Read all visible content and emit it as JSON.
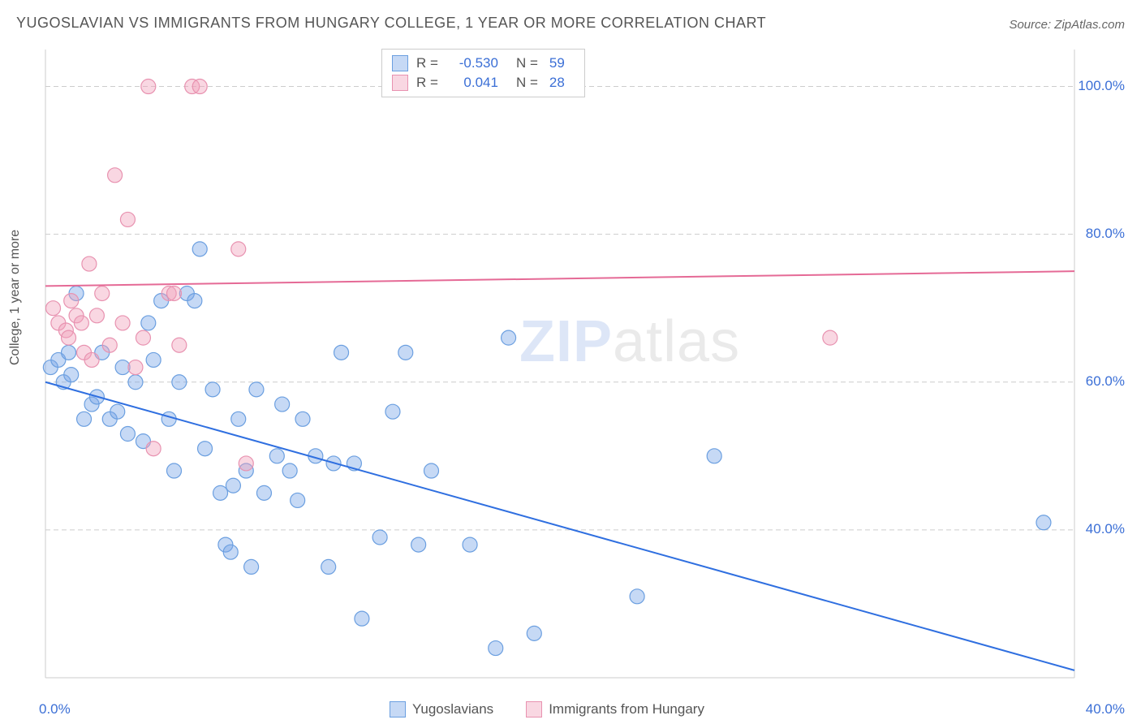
{
  "title": "YUGOSLAVIAN VS IMMIGRANTS FROM HUNGARY COLLEGE, 1 YEAR OR MORE CORRELATION CHART",
  "source": "Source: ZipAtlas.com",
  "y_axis_label": "College, 1 year or more",
  "watermark": "ZIPatlas",
  "chart": {
    "type": "scatter",
    "background_color": "#ffffff",
    "grid_color": "#cccccc",
    "grid_dash": "6,4",
    "xlim": [
      0,
      40
    ],
    "ylim": [
      20,
      105
    ],
    "y_ticks": [
      {
        "value": 40,
        "label": "40.0%"
      },
      {
        "value": 60,
        "label": "60.0%"
      },
      {
        "value": 80,
        "label": "80.0%"
      },
      {
        "value": 100,
        "label": "100.0%"
      }
    ],
    "x_ticks": [
      {
        "value": 0,
        "label": "0.0%"
      },
      {
        "value": 40,
        "label": "40.0%"
      }
    ],
    "axis_line_color": "#cccccc",
    "tick_label_color": "#3b6fd6",
    "tick_fontsize": 17,
    "y_label_fontsize": 16,
    "series": [
      {
        "name": "Yugoslavians",
        "fill": "rgba(120,165,230,0.42)",
        "stroke": "#6b9fe0",
        "stroke_width": 1.2,
        "marker_radius": 9,
        "marker_shape": "circle",
        "line_color": "#2f6fe0",
        "line_width": 2,
        "regression": {
          "x1": 0,
          "y1": 60,
          "x2": 40,
          "y2": 21
        },
        "R": "-0.530",
        "N": "59",
        "points": [
          [
            0.2,
            62
          ],
          [
            0.5,
            63
          ],
          [
            0.7,
            60
          ],
          [
            0.9,
            64
          ],
          [
            1.0,
            61
          ],
          [
            1.2,
            72
          ],
          [
            1.5,
            55
          ],
          [
            1.8,
            57
          ],
          [
            2.0,
            58
          ],
          [
            2.2,
            64
          ],
          [
            2.5,
            55
          ],
          [
            2.8,
            56
          ],
          [
            3.0,
            62
          ],
          [
            3.2,
            53
          ],
          [
            3.5,
            60
          ],
          [
            3.8,
            52
          ],
          [
            4.0,
            68
          ],
          [
            4.2,
            63
          ],
          [
            4.5,
            71
          ],
          [
            4.8,
            55
          ],
          [
            5.0,
            48
          ],
          [
            5.2,
            60
          ],
          [
            5.5,
            72
          ],
          [
            5.8,
            71
          ],
          [
            6.0,
            78
          ],
          [
            6.2,
            51
          ],
          [
            6.5,
            59
          ],
          [
            6.8,
            45
          ],
          [
            7.0,
            38
          ],
          [
            7.2,
            37
          ],
          [
            7.3,
            46
          ],
          [
            7.5,
            55
          ],
          [
            7.8,
            48
          ],
          [
            8.0,
            35
          ],
          [
            8.2,
            59
          ],
          [
            8.5,
            45
          ],
          [
            9.0,
            50
          ],
          [
            9.2,
            57
          ],
          [
            9.5,
            48
          ],
          [
            9.8,
            44
          ],
          [
            10.0,
            55
          ],
          [
            10.5,
            50
          ],
          [
            11.0,
            35
          ],
          [
            11.2,
            49
          ],
          [
            11.5,
            64
          ],
          [
            12.0,
            49
          ],
          [
            12.3,
            28
          ],
          [
            13.0,
            39
          ],
          [
            13.5,
            56
          ],
          [
            14.0,
            64
          ],
          [
            14.5,
            38
          ],
          [
            15.0,
            48
          ],
          [
            16.5,
            38
          ],
          [
            17.5,
            24
          ],
          [
            18.0,
            66
          ],
          [
            19.0,
            26
          ],
          [
            23.0,
            31
          ],
          [
            26.0,
            50
          ],
          [
            38.8,
            41
          ]
        ]
      },
      {
        "name": "Immigrants from Hungary",
        "fill": "rgba(240,160,185,0.42)",
        "stroke": "#e892b0",
        "stroke_width": 1.2,
        "marker_radius": 9,
        "marker_shape": "circle",
        "line_color": "#e56a96",
        "line_width": 2,
        "regression": {
          "x1": 0,
          "y1": 73,
          "x2": 40,
          "y2": 75
        },
        "R": "0.041",
        "N": "28",
        "points": [
          [
            0.3,
            70
          ],
          [
            0.5,
            68
          ],
          [
            0.8,
            67
          ],
          [
            0.9,
            66
          ],
          [
            1.0,
            71
          ],
          [
            1.2,
            69
          ],
          [
            1.4,
            68
          ],
          [
            1.5,
            64
          ],
          [
            1.7,
            76
          ],
          [
            1.8,
            63
          ],
          [
            2.0,
            69
          ],
          [
            2.2,
            72
          ],
          [
            2.5,
            65
          ],
          [
            2.7,
            88
          ],
          [
            3.0,
            68
          ],
          [
            3.2,
            82
          ],
          [
            3.5,
            62
          ],
          [
            3.8,
            66
          ],
          [
            4.0,
            100
          ],
          [
            4.2,
            51
          ],
          [
            4.8,
            72
          ],
          [
            5.0,
            72
          ],
          [
            5.2,
            65
          ],
          [
            5.7,
            100
          ],
          [
            6.0,
            100
          ],
          [
            7.5,
            78
          ],
          [
            7.8,
            49
          ],
          [
            30.5,
            66
          ]
        ]
      }
    ],
    "bottom_legend": [
      {
        "label": "Yugoslavians",
        "fill": "rgba(120,165,230,0.42)",
        "stroke": "#6b9fe0"
      },
      {
        "label": "Immigrants from Hungary",
        "fill": "rgba(240,160,185,0.42)",
        "stroke": "#e892b0"
      }
    ],
    "stat_legend_swatches": [
      {
        "fill": "rgba(120,165,230,0.42)",
        "stroke": "#6b9fe0"
      },
      {
        "fill": "rgba(240,160,185,0.42)",
        "stroke": "#e892b0"
      }
    ]
  }
}
